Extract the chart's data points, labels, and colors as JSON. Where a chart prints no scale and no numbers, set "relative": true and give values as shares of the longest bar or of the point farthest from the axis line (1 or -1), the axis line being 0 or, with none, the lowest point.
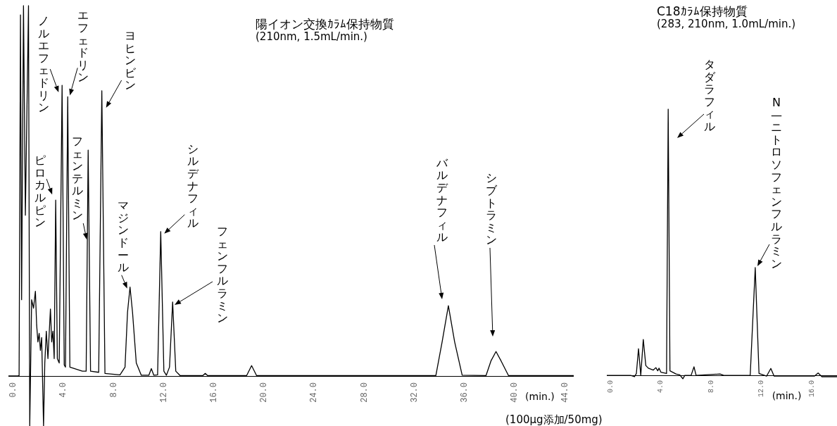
{
  "chart_data": [
    {
      "type": "line",
      "title": "陽イオン交換ｶﾗﾑ保持物質",
      "subtitle": "(210nm, 1.5mL/min.)",
      "xlabel": "(min.)",
      "relative": true,
      "tick_labels": "x",
      "marker": "none",
      "xlim": [
        -0.4,
        44.7
      ],
      "xticks": [
        {
          "value": 0,
          "label": "0.0"
        },
        {
          "value": 4,
          "label": "4.0"
        },
        {
          "value": 8,
          "label": "8.0"
        },
        {
          "value": 12,
          "label": "12.0"
        },
        {
          "value": 16,
          "label": "16.0"
        },
        {
          "value": 20,
          "label": "20.0"
        },
        {
          "value": 24,
          "label": "24.0"
        },
        {
          "value": 28,
          "label": "28.0"
        },
        {
          "value": 32,
          "label": "32.0"
        },
        {
          "value": 36,
          "label": "36.0"
        },
        {
          "value": 40,
          "label": "40.0"
        },
        {
          "value": 44,
          "label": "44.0"
        }
      ],
      "series": [
        {
          "color": "#000000",
          "x": [
            -0.4,
            0.35,
            0.45,
            0.56,
            0.65,
            0.8,
            0.95,
            1.2,
            1.3,
            1.45,
            1.6,
            1.75,
            1.85,
            1.95,
            2.05,
            2.15,
            2.25,
            2.4,
            2.5,
            2.62,
            2.75,
            2.95,
            3.05,
            3.15,
            3.25,
            3.37,
            3.5,
            3.65,
            3.88,
            4.05,
            4.15,
            4.33,
            4.5,
            5.5,
            5.8,
            5.96,
            6.15,
            6.8,
            7.05,
            7.3,
            8.5,
            8.9,
            9.1,
            9.3,
            9.5,
            9.8,
            10.2,
            10.8,
            11.0,
            11.2,
            11.5,
            11.75,
            12.0,
            12.2,
            12.45,
            12.7,
            12.95,
            13.3,
            15.1,
            15.3,
            15.5,
            18.6,
            19.0,
            19.4,
            33.7,
            34.2,
            34.7,
            35.2,
            35.8,
            37.7,
            38.1,
            38.5,
            38.9,
            39.5,
            44.7
          ],
          "values": [
            0,
            0,
            0.001,
            0.975,
            0.206,
            1.0,
            0.434,
            1.0,
            -0.135,
            0.206,
            0.183,
            0.229,
            0.138,
            0.092,
            0.115,
            0.069,
            0.104,
            -0.135,
            0.035,
            0.121,
            0.047,
            0.181,
            0.092,
            0.121,
            0.047,
            0.475,
            0.047,
            0.035,
            0.785,
            0.03,
            0.024,
            0.754,
            0.024,
            0.013,
            0.013,
            0.61,
            0.013,
            0.01,
            0.77,
            0.007,
            0.003,
            0.024,
            0.172,
            0.24,
            0.172,
            0.035,
            0.002,
            0.002,
            0.02,
            0.002,
            0.003,
            0.39,
            0.013,
            0.002,
            0.024,
            0.2,
            0.013,
            0.001,
            0.001,
            0.007,
            0.001,
            0.001,
            0.028,
            0.001,
            0.001,
            0.092,
            0.19,
            0.092,
            0.002,
            0.001,
            0.041,
            0.066,
            0.041,
            0.001,
            0.001
          ]
        }
      ],
      "annotations": [
        {
          "text": "ピロカルピン",
          "x": 3.37,
          "y": 0.475
        },
        {
          "text": "ノルエフェドリン",
          "x": 3.88,
          "y": 0.785
        },
        {
          "text": "エフェドリン",
          "x": 4.33,
          "y": 0.754
        },
        {
          "text": "フェンテルミン",
          "x": 5.96,
          "y": 0.61
        },
        {
          "text": "ヨヒンビン",
          "x": 7.05,
          "y": 0.77
        },
        {
          "text": "マジンドール",
          "x": 9.3,
          "y": 0.24
        },
        {
          "text": "シルデナフィル",
          "x": 11.75,
          "y": 0.39
        },
        "フェンフルラミン",
        "バルデナフィル",
        "シブトラミン",
        "(100μg添加/50mg)"
      ]
    },
    {
      "type": "line",
      "title": "C18ｶﾗﾑ保持物質",
      "subtitle": "(283, 210nm, 1.0mL/min.)",
      "xlabel": "(min.)",
      "relative": true,
      "tick_labels": "x",
      "marker": "none",
      "xlim": [
        -0.3,
        18.0
      ],
      "xticks": [
        {
          "value": 0,
          "label": "0.0"
        },
        {
          "value": 4,
          "label": "4.0"
        },
        {
          "value": 8,
          "label": "8.0"
        },
        {
          "value": 12,
          "label": "12.0"
        },
        {
          "value": 16,
          "label": "16.0"
        }
      ],
      "series": [
        {
          "color": "#000000",
          "x": [
            -0.3,
            1.6,
            1.9,
            2.05,
            2.22,
            2.4,
            2.6,
            2.8,
            3.0,
            3.4,
            3.6,
            3.75,
            3.85,
            4.0,
            4.45,
            4.58,
            4.72,
            5.2,
            5.5,
            5.75,
            5.9,
            6.4,
            6.63,
            6.8,
            8.7,
            9.0,
            11.1,
            11.5,
            11.8,
            12.4,
            12.74,
            13.0,
            16.2,
            16.5,
            16.8,
            18.0
          ],
          "values": [
            0,
            0,
            -0.005,
            0.007,
            0.1,
            0,
            0.135,
            0.037,
            0.027,
            0.02,
            0.029,
            0.017,
            0.027,
            0.012,
            0.007,
            1.0,
            0.017,
            0.005,
            0.002,
            -0.013,
            0,
            0,
            0.032,
            0,
            0.005,
            0,
            0,
            0.405,
            0.007,
            -0.003,
            0.026,
            -0.003,
            -0.003,
            0.009,
            -0.005,
            -0.005
          ]
        }
      ],
      "annotations": [
        "タダラフィル",
        "N—ニトロソフェンフルラミン"
      ]
    }
  ]
}
